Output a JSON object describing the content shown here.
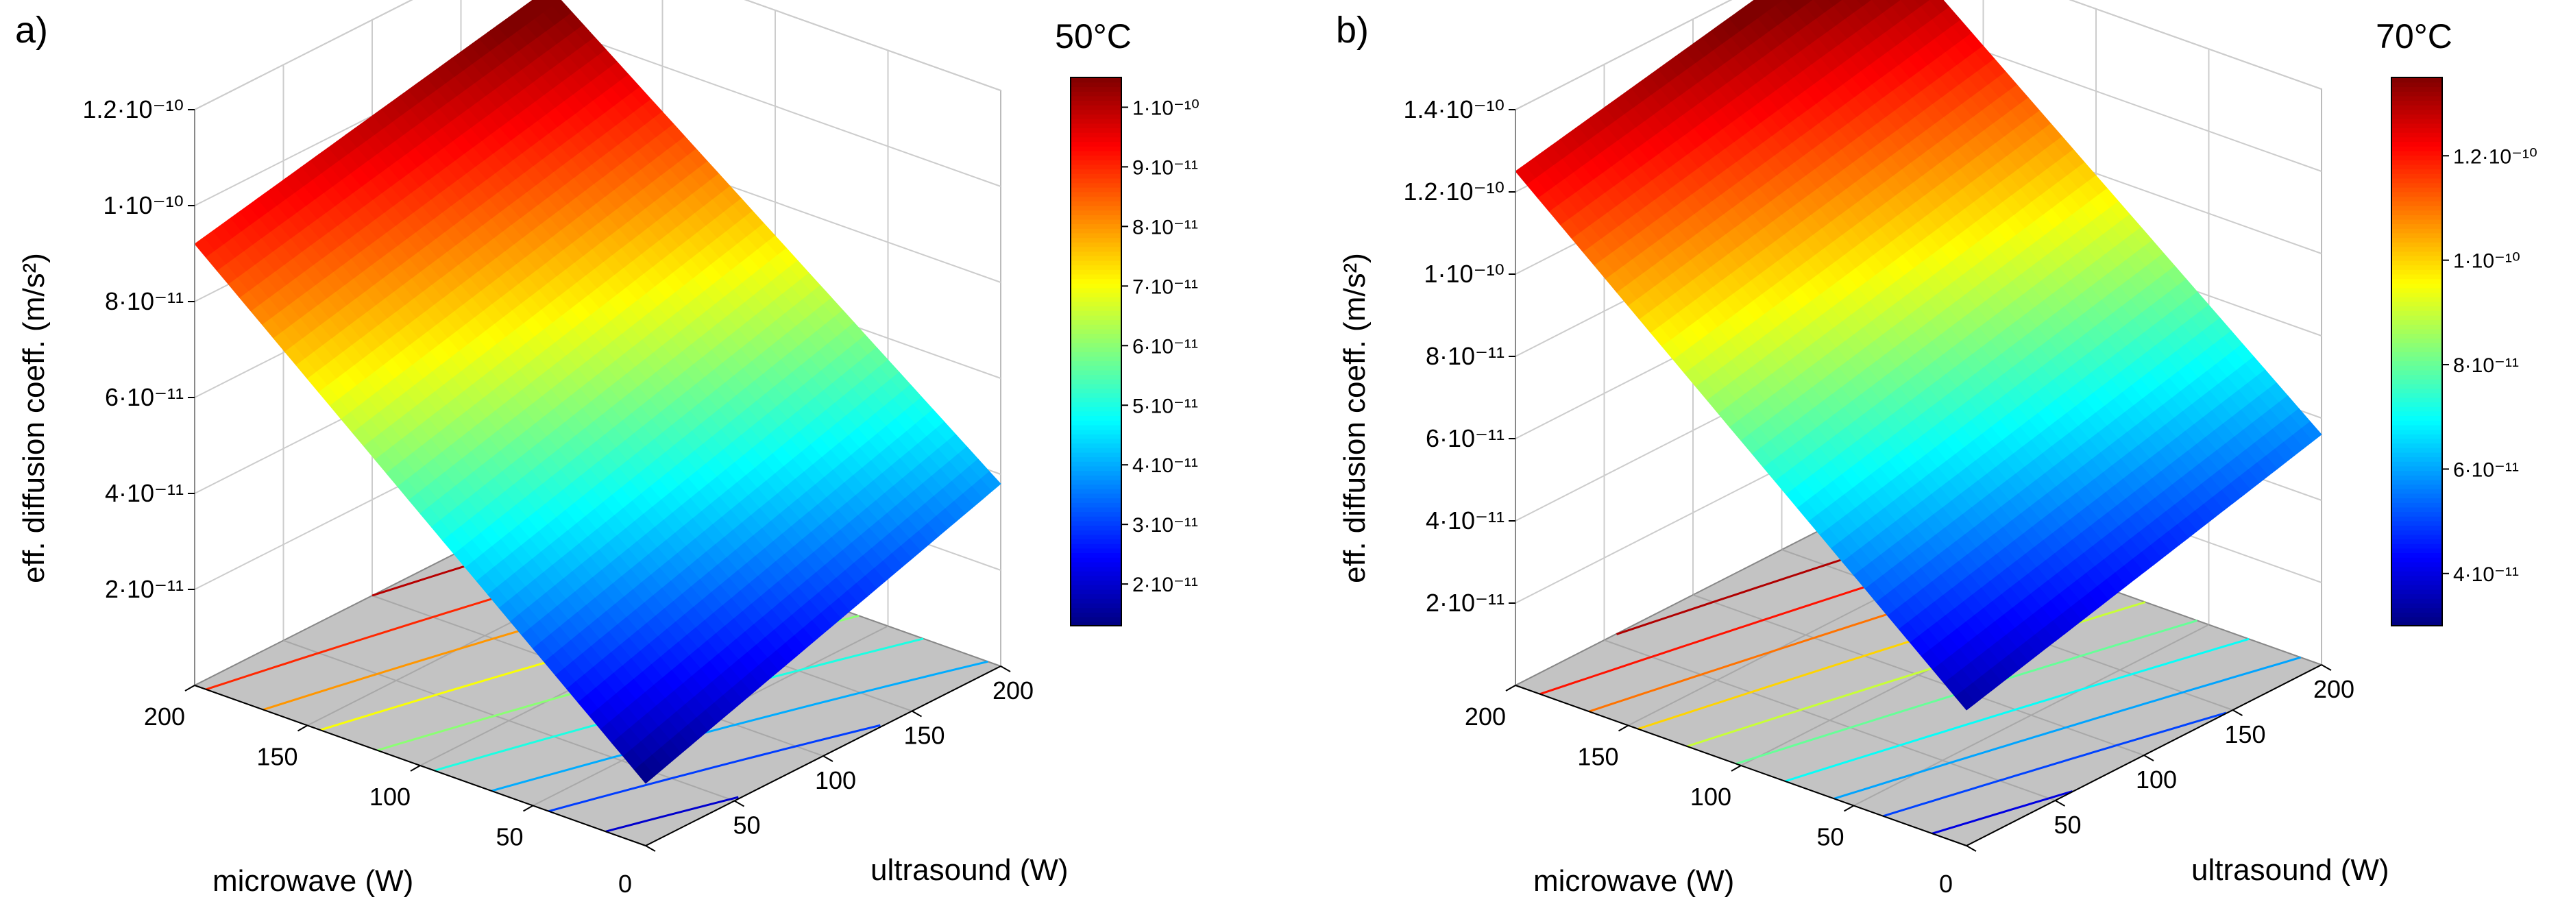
{
  "chart_data": [
    {
      "type": "surface3d",
      "panel_label": "a)",
      "title": "50°C",
      "xlabel": "ultrasound (W)",
      "ylabel": "microwave (W)",
      "zlabel": "eff. diffusion coeff. (m/s²)",
      "xlim": [
        0,
        200
      ],
      "ylim": [
        0,
        200
      ],
      "zlim": [
        0,
        1.2e-10
      ],
      "x_ticks": [
        "0",
        "50",
        "100",
        "150",
        "200"
      ],
      "y_ticks": [
        "200",
        "150",
        "100",
        "50"
      ],
      "z_ticks": [
        {
          "value": 2e-11,
          "label": "2·10⁻¹¹"
        },
        {
          "value": 4e-11,
          "label": "4·10⁻¹¹"
        },
        {
          "value": 6e-11,
          "label": "6·10⁻¹¹"
        },
        {
          "value": 8e-11,
          "label": "8·10⁻¹¹"
        },
        {
          "value": 1e-10,
          "label": "1·10⁻¹⁰"
        },
        {
          "value": 1.2e-10,
          "label": "1.2·10⁻¹⁰"
        }
      ],
      "surface_corners": {
        "us0_mw0": 1.3e-11,
        "us200_mw0": 3.8e-11,
        "us0_mw200": 9.2e-11,
        "us200_mw200": 1.08e-10
      },
      "colorbar": {
        "min": 1.3e-11,
        "max": 1.05e-10,
        "ticks": [
          {
            "value": 2e-11,
            "label": "2·10⁻¹¹"
          },
          {
            "value": 3e-11,
            "label": "3·10⁻¹¹"
          },
          {
            "value": 4e-11,
            "label": "4·10⁻¹¹"
          },
          {
            "value": 5e-11,
            "label": "5·10⁻¹¹"
          },
          {
            "value": 6e-11,
            "label": "6·10⁻¹¹"
          },
          {
            "value": 7e-11,
            "label": "7·10⁻¹¹"
          },
          {
            "value": 8e-11,
            "label": "8·10⁻¹¹"
          },
          {
            "value": 9e-11,
            "label": "9·10⁻¹¹"
          },
          {
            "value": 1e-10,
            "label": "1·10⁻¹⁰"
          }
        ]
      },
      "contour_levels": [
        2e-11,
        3e-11,
        4e-11,
        5e-11,
        6e-11,
        7e-11,
        8e-11,
        9e-11,
        1e-10
      ]
    },
    {
      "type": "surface3d",
      "panel_label": "b)",
      "title": "70°C",
      "xlabel": "ultrasound (W)",
      "ylabel": "microwave (W)",
      "zlabel": "eff. diffusion coeff. (m/s²)",
      "xlim": [
        0,
        200
      ],
      "ylim": [
        0,
        200
      ],
      "zlim": [
        0,
        1.4e-10
      ],
      "x_ticks": [
        "0",
        "50",
        "100",
        "150",
        "200"
      ],
      "y_ticks": [
        "200",
        "150",
        "100",
        "50"
      ],
      "z_ticks": [
        {
          "value": 2e-11,
          "label": "2·10⁻¹¹"
        },
        {
          "value": 4e-11,
          "label": "4·10⁻¹¹"
        },
        {
          "value": 6e-11,
          "label": "6·10⁻¹¹"
        },
        {
          "value": 8e-11,
          "label": "8·10⁻¹¹"
        },
        {
          "value": 1e-10,
          "label": "1·10⁻¹⁰"
        },
        {
          "value": 1.2e-10,
          "label": "1.2·10⁻¹⁰"
        },
        {
          "value": 1.4e-10,
          "label": "1.4·10⁻¹⁰"
        }
      ],
      "surface_corners": {
        "us0_mw0": 3.3e-11,
        "us200_mw0": 5.6e-11,
        "us0_mw200": 1.25e-10,
        "us200_mw200": 1.43e-10
      },
      "colorbar": {
        "min": 3e-11,
        "max": 1.35e-10,
        "ticks": [
          {
            "value": 4e-11,
            "label": "4·10⁻¹¹"
          },
          {
            "value": 6e-11,
            "label": "6·10⁻¹¹"
          },
          {
            "value": 8e-11,
            "label": "8·10⁻¹¹"
          },
          {
            "value": 1e-10,
            "label": "1·10⁻¹⁰"
          },
          {
            "value": 1.2e-10,
            "label": "1.2·10⁻¹⁰"
          }
        ]
      },
      "contour_levels": [
        4e-11,
        5e-11,
        6e-11,
        7e-11,
        8e-11,
        9e-11,
        1e-10,
        1.1e-10,
        1.2e-10,
        1.3e-10
      ]
    }
  ]
}
